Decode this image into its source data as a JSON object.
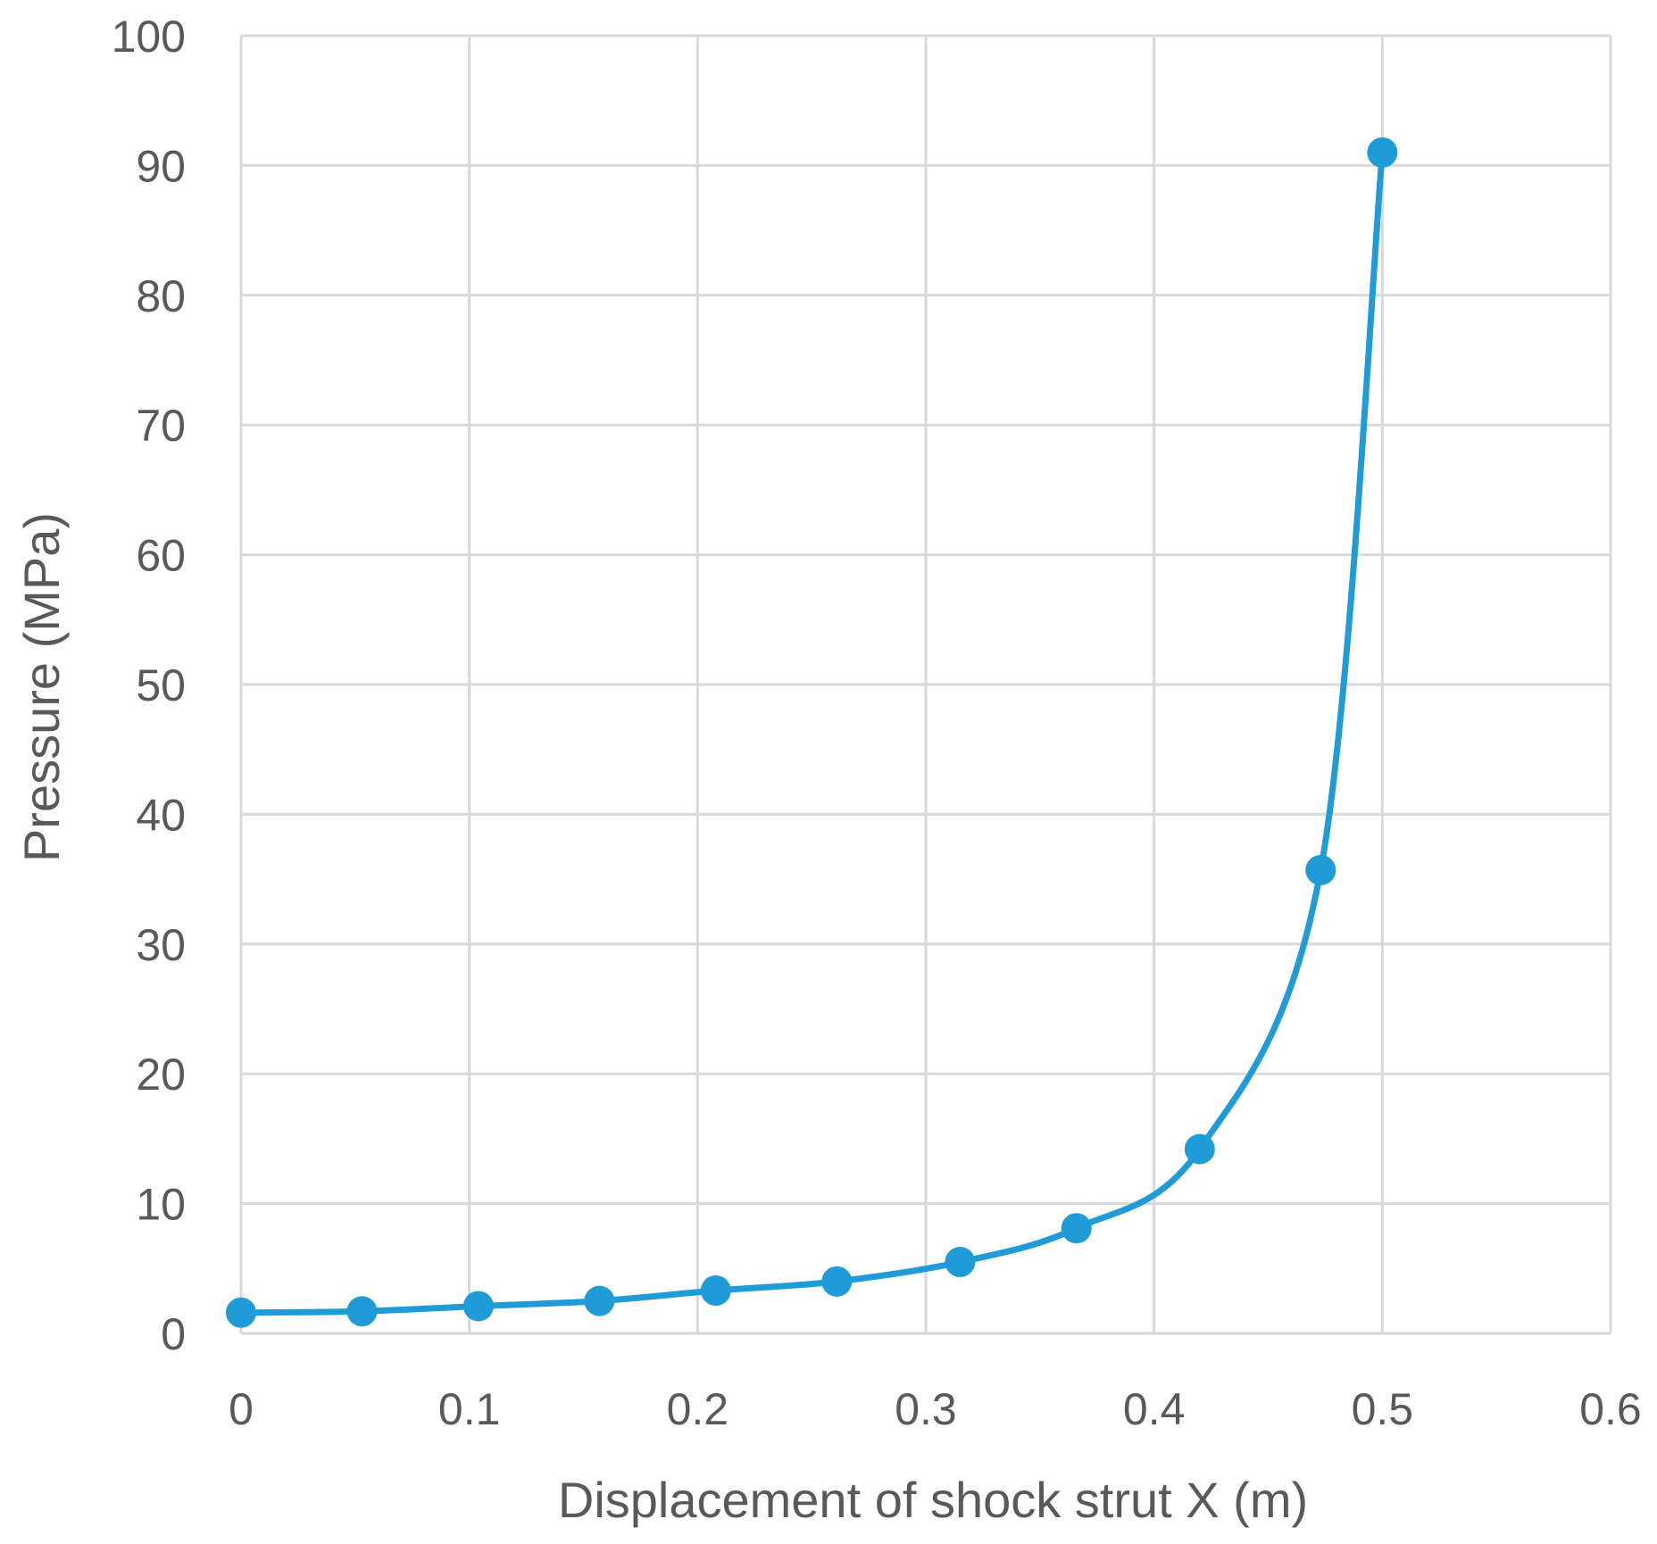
{
  "chart_data": {
    "type": "scatter",
    "xlabel": "Displacement of shock strut X (m)",
    "ylabel": "Pressure (MPa)",
    "xlim": [
      0,
      0.6
    ],
    "ylim": [
      0,
      100
    ],
    "x_ticks": [
      "0",
      "0.1",
      "0.2",
      "0.3",
      "0.4",
      "0.5",
      "0.6"
    ],
    "y_ticks": [
      "0",
      "10",
      "20",
      "30",
      "40",
      "50",
      "60",
      "70",
      "80",
      "90",
      "100"
    ],
    "grid": true,
    "smooth_line": true,
    "series": [
      {
        "color": "#1f9bd7",
        "points": [
          {
            "x": 0.0,
            "y": 1.6
          },
          {
            "x": 0.053,
            "y": 1.7
          },
          {
            "x": 0.104,
            "y": 2.1
          },
          {
            "x": 0.157,
            "y": 2.5
          },
          {
            "x": 0.208,
            "y": 3.3
          },
          {
            "x": 0.261,
            "y": 4.0
          },
          {
            "x": 0.315,
            "y": 5.5
          },
          {
            "x": 0.366,
            "y": 8.1
          },
          {
            "x": 0.42,
            "y": 14.2
          },
          {
            "x": 0.473,
            "y": 35.7
          },
          {
            "x": 0.5,
            "y": 91.0
          }
        ]
      }
    ]
  }
}
